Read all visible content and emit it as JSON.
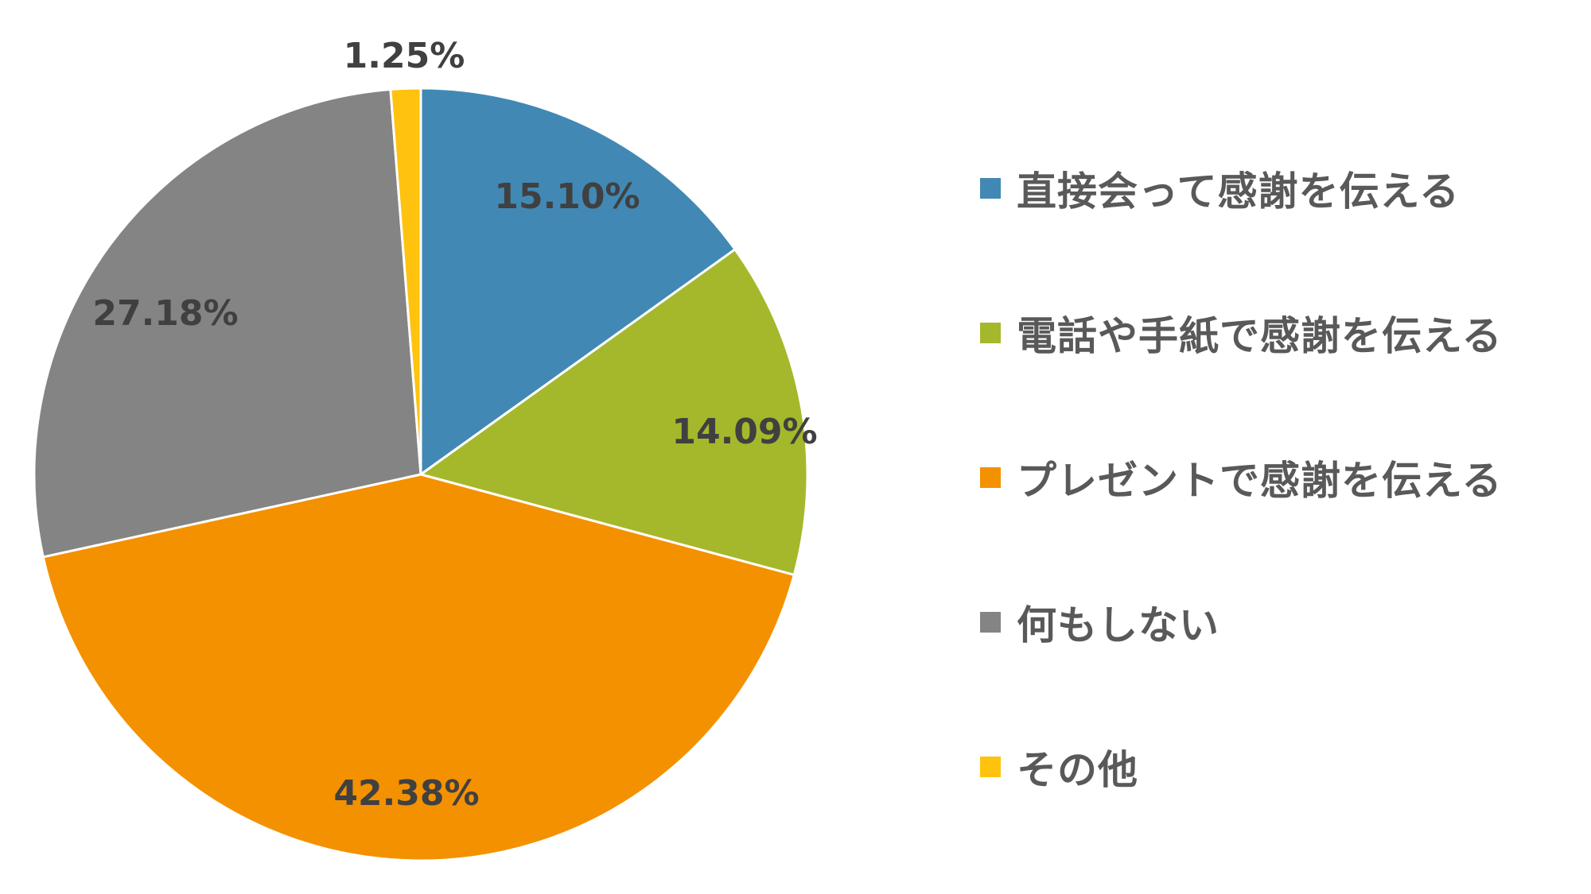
{
  "chart_data": {
    "type": "pie",
    "start_angle_deg": 0,
    "direction": "clockwise",
    "legend_position": "right",
    "slices": [
      {
        "label": "直接会って感謝を伝える",
        "value": 15.1,
        "value_label": "15.10%",
        "color": "#4189B4"
      },
      {
        "label": "電話や手紙で感謝を伝える",
        "value": 14.09,
        "value_label": "14.09%",
        "color": "#A5B82B"
      },
      {
        "label": "プレゼントで感謝を伝える",
        "value": 42.38,
        "value_label": "42.38%",
        "color": "#F49100"
      },
      {
        "label": "何もしない",
        "value": 27.18,
        "value_label": "27.18%",
        "color": "#848484"
      },
      {
        "label": "その他",
        "value": 1.25,
        "value_label": "1.25%",
        "color": "#FFC20E"
      }
    ]
  }
}
